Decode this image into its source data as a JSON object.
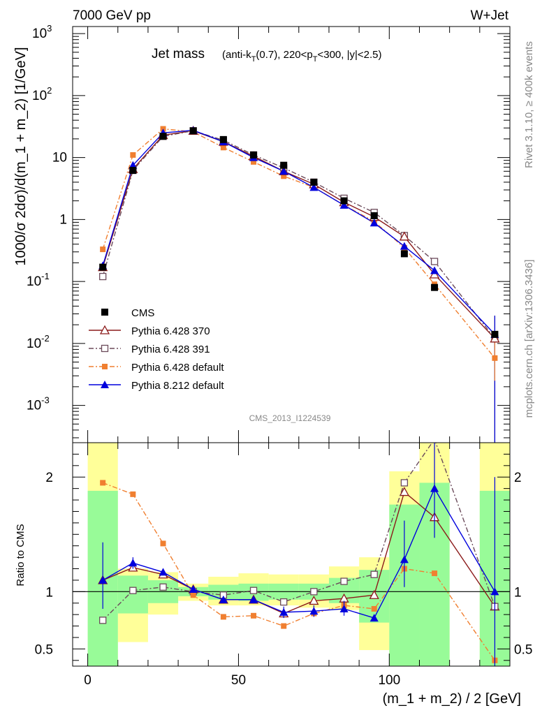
{
  "header": {
    "left": "7000 GeV pp",
    "right": "W+Jet"
  },
  "side": {
    "rivet": "Rivet 3.1.10, ≥ 400k events",
    "mcplots": "mcplots.cern.ch [arXiv:1306.3436]"
  },
  "analysis_tag": "CMS_2013_I1224539",
  "chart_data": [
    {
      "type": "scatter",
      "panel": "main",
      "title": "Jet mass",
      "subtitle": "(anti-k_T(0.7), 220<p_T<300, |y|<2.5)",
      "ylabel": "1000/σ 2dσ)/d(m_1 + m_2) [1/GeV]",
      "xlabel": "(m_1 + m_2) / 2 [GeV]",
      "yscale": "log",
      "ylim": [
        0.00025,
        1300
      ],
      "xlim": [
        -5,
        140
      ],
      "x": [
        5,
        15,
        25,
        35,
        45,
        55,
        65,
        75,
        85,
        95,
        105,
        115,
        135
      ],
      "series": [
        {
          "name": "CMS",
          "color": "#000000",
          "marker": "square-filled",
          "line": "none",
          "values": [
            0.17,
            6.2,
            22,
            27,
            19.5,
            11,
            7.5,
            4.0,
            2.0,
            1.15,
            0.28,
            0.08,
            0.014
          ],
          "ytop": [
            null,
            null,
            null,
            null,
            null,
            null,
            null,
            null,
            null,
            null,
            null,
            null,
            0.028
          ],
          "ybottom": [
            null,
            null,
            null,
            null,
            null,
            null,
            null,
            null,
            null,
            null,
            null,
            null,
            0.00025
          ]
        },
        {
          "name": "Pythia 6.428 370",
          "color": "#8b1a1a",
          "marker": "triangle-open",
          "line": "solid",
          "values": [
            0.17,
            6.5,
            23,
            27,
            18,
            10.5,
            6.0,
            3.7,
            1.9,
            1.1,
            0.53,
            0.13,
            0.012
          ]
        },
        {
          "name": "Pythia 6.428 391",
          "color": "#6b4a5a",
          "marker": "square-open",
          "line": "dashdot",
          "values": [
            0.12,
            6.2,
            22,
            27,
            19,
            11,
            6.8,
            4.0,
            2.2,
            1.3,
            0.55,
            0.21,
            0.012
          ]
        },
        {
          "name": "Pythia 6.428 default",
          "color": "#f07f30",
          "marker": "square-filled-small",
          "line": "dashdot",
          "values": [
            0.33,
            11,
            29,
            26,
            14.5,
            8.5,
            5.0,
            3.3,
            1.7,
            0.93,
            0.35,
            0.09,
            0.0058
          ]
        },
        {
          "name": "Pythia 8.212 default",
          "color": "#0000dd",
          "marker": "triangle-filled",
          "line": "solid",
          "values": [
            0.18,
            7.5,
            25,
            27.5,
            18,
            10,
            6.0,
            3.3,
            1.7,
            0.88,
            0.37,
            0.15,
            0.014
          ]
        }
      ]
    },
    {
      "type": "scatter",
      "panel": "ratio",
      "ylabel": "Ratio to CMS",
      "xlabel": "(m_1 + m_2) / 2 [GeV]",
      "ylim": [
        0.35,
        2.3
      ],
      "xlim": [
        -5,
        140
      ],
      "yticks": [
        0.5,
        1,
        2
      ],
      "xticks": [
        0,
        50,
        100
      ],
      "reference": 1,
      "bands": {
        "yellow": [
          {
            "x": [
              0,
              10
            ],
            "lo": 0.35,
            "hi": 2.3
          },
          {
            "x": [
              10,
              20
            ],
            "lo": 0.56,
            "hi": 1.2
          },
          {
            "x": [
              20,
              30
            ],
            "lo": 0.8,
            "hi": 1.17
          },
          {
            "x": [
              30,
              40
            ],
            "lo": 0.92,
            "hi": 1.07
          },
          {
            "x": [
              40,
              50
            ],
            "lo": 0.88,
            "hi": 1.13
          },
          {
            "x": [
              50,
              60
            ],
            "lo": 0.88,
            "hi": 1.16
          },
          {
            "x": [
              60,
              70
            ],
            "lo": 0.88,
            "hi": 1.15
          },
          {
            "x": [
              70,
              80
            ],
            "lo": 0.86,
            "hi": 1.15
          },
          {
            "x": [
              80,
              90
            ],
            "lo": 0.84,
            "hi": 1.22
          },
          {
            "x": [
              90,
              100
            ],
            "lo": 0.49,
            "hi": 1.3
          },
          {
            "x": [
              100,
              110
            ],
            "lo": 0.4,
            "hi": 2.05
          },
          {
            "x": [
              110,
              120
            ],
            "lo": 0.4,
            "hi": 2.3
          },
          {
            "x": [
              130,
              140
            ],
            "lo": 0.35,
            "hi": 2.3
          }
        ],
        "green": [
          {
            "x": [
              0,
              10
            ],
            "lo": 0.35,
            "hi": 1.88
          },
          {
            "x": [
              10,
              20
            ],
            "lo": 0.81,
            "hi": 1.14
          },
          {
            "x": [
              20,
              30
            ],
            "lo": 0.9,
            "hi": 1.1
          },
          {
            "x": [
              30,
              40
            ],
            "lo": 0.96,
            "hi": 1.04
          },
          {
            "x": [
              40,
              50
            ],
            "lo": 0.93,
            "hi": 1.06
          },
          {
            "x": [
              50,
              60
            ],
            "lo": 0.92,
            "hi": 1.07
          },
          {
            "x": [
              60,
              70
            ],
            "lo": 0.93,
            "hi": 1.07
          },
          {
            "x": [
              70,
              80
            ],
            "lo": 0.93,
            "hi": 1.07
          },
          {
            "x": [
              80,
              90
            ],
            "lo": 0.9,
            "hi": 1.12
          },
          {
            "x": [
              90,
              100
            ],
            "lo": 0.73,
            "hi": 1.19
          },
          {
            "x": [
              100,
              110
            ],
            "lo": 0.35,
            "hi": 1.76
          },
          {
            "x": [
              110,
              120
            ],
            "lo": 0.35,
            "hi": 1.95
          },
          {
            "x": [
              130,
              140
            ],
            "lo": 0.35,
            "hi": 1.88
          }
        ]
      },
      "series": [
        {
          "name": "Pythia 6.428 370",
          "color": "#8b1a1a",
          "marker": "triangle-open",
          "line": "solid",
          "values": [
            1.1,
            1.21,
            1.15,
            1.02,
            0.93,
            0.93,
            0.81,
            0.92,
            0.94,
            0.97,
            1.87,
            1.65,
            0.87
          ]
        },
        {
          "name": "Pythia 6.428 391",
          "color": "#6b4a5a",
          "marker": "square-open",
          "line": "dashdot",
          "values": [
            0.75,
            1.01,
            1.04,
            1.0,
            0.97,
            1.01,
            0.91,
            1.0,
            1.09,
            1.15,
            1.95,
            2.33,
            0.87
          ]
        },
        {
          "name": "Pythia 6.428 default",
          "color": "#f07f30",
          "marker": "square-filled-small",
          "line": "dashdot",
          "values": [
            1.95,
            1.85,
            1.42,
            0.97,
            0.78,
            0.79,
            0.7,
            0.81,
            0.88,
            0.85,
            1.2,
            1.16,
            0.4
          ]
        },
        {
          "name": "Pythia 8.212 default",
          "color": "#0000dd",
          "marker": "triangle-filled",
          "line": "solid",
          "values": [
            1.1,
            1.25,
            1.17,
            1.02,
            0.93,
            0.93,
            0.82,
            0.83,
            0.85,
            0.77,
            1.28,
            1.9,
            1.0
          ],
          "ytop": [
            1.43,
            1.3,
            null,
            null,
            null,
            null,
            0.87,
            0.88,
            0.92,
            null,
            1.62,
            2.3,
            2.0
          ],
          "ybottom": [
            0.85,
            1.2,
            null,
            null,
            null,
            null,
            0.77,
            0.78,
            0.79,
            null,
            1.04,
            1.47,
            0.35
          ]
        }
      ]
    }
  ]
}
